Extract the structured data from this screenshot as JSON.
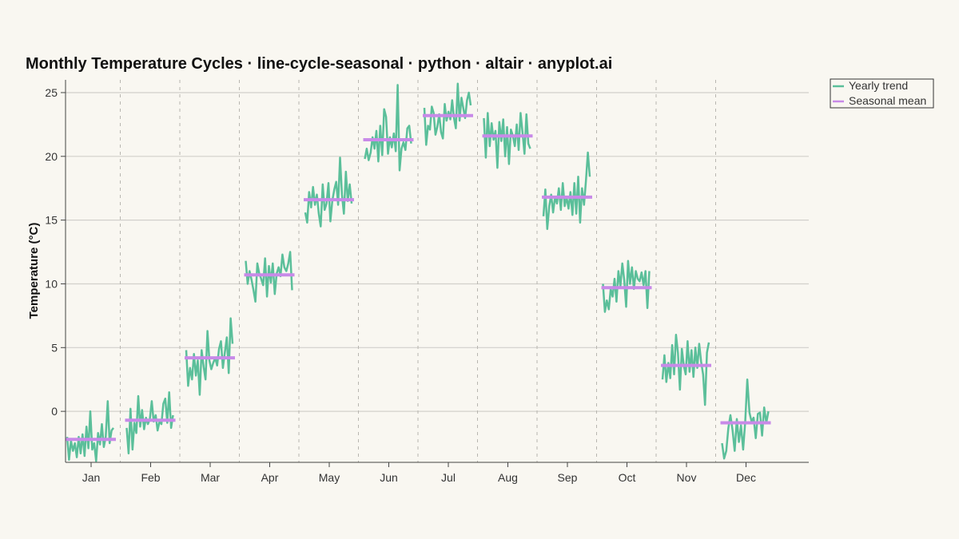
{
  "chart_data": {
    "type": "line",
    "title": "Monthly Temperature Cycles · line-cycle-seasonal · python · altair · anyplot.ai",
    "xlabel": "",
    "ylabel": "Temperature (°C)",
    "ylim": [
      -4,
      26
    ],
    "yticks": [
      0,
      5,
      10,
      15,
      20,
      25
    ],
    "grid": "horizontal",
    "legend_position": "top-right",
    "categories": [
      "Jan",
      "Feb",
      "Mar",
      "Apr",
      "May",
      "Jun",
      "Jul",
      "Aug",
      "Sep",
      "Oct",
      "Nov",
      "Dec"
    ],
    "series": [
      {
        "name": "Yearly trend",
        "color": "#5bbf9a",
        "type": "line",
        "values": [
          [
            -2.0,
            -3.8,
            -2.3,
            -3.1,
            -2.5,
            -3.6,
            -2.0,
            -3.3,
            -1.8,
            -3.5,
            -1.2,
            -2.9,
            0.0,
            -3.0,
            -2.5,
            -3.9,
            -1.7,
            -2.6,
            -1.0,
            -2.8,
            -2.0,
            0.8,
            -2.5,
            -1.5,
            -1.3
          ],
          [
            -1.3,
            -3.3,
            0.2,
            -3.0,
            -0.9,
            -1.7,
            1.2,
            -1.2,
            0.1,
            -1.4,
            -0.5,
            -1.0,
            -0.6,
            0.8,
            -0.8,
            -0.3,
            -1.5,
            -0.8,
            -1.0,
            0.6,
            1.0,
            -0.9,
            1.5,
            -1.3,
            -0.3
          ],
          [
            4.8,
            2.0,
            3.4,
            2.5,
            4.5,
            2.8,
            4.0,
            1.3,
            4.8,
            3.5,
            2.5,
            6.3,
            4.0,
            3.3,
            3.8,
            4.2,
            3.6,
            4.9,
            5.5,
            3.4,
            4.6,
            5.8,
            3.0,
            7.3,
            5.3
          ],
          [
            11.8,
            10.0,
            11.0,
            10.3,
            9.5,
            8.6,
            11.6,
            10.8,
            10.4,
            9.9,
            12.0,
            9.0,
            11.4,
            10.1,
            11.6,
            9.2,
            10.8,
            11.3,
            10.6,
            12.3,
            11.3,
            11.0,
            11.6,
            12.5,
            9.5
          ],
          [
            15.6,
            14.8,
            17.2,
            16.0,
            17.6,
            16.2,
            17.0,
            15.5,
            14.5,
            17.8,
            15.8,
            16.3,
            17.9,
            14.9,
            16.5,
            17.4,
            18.0,
            16.2,
            19.9,
            17.0,
            15.5,
            18.8,
            16.5,
            17.8,
            16.3
          ],
          [
            19.8,
            20.6,
            19.7,
            20.3,
            21.5,
            20.6,
            22.0,
            19.6,
            22.4,
            20.1,
            23.7,
            23.1,
            20.2,
            21.5,
            20.7,
            21.8,
            20.4,
            25.6,
            18.9,
            20.6,
            21.1,
            20.5,
            22.2,
            22.4,
            21.0
          ],
          [
            23.8,
            20.9,
            22.4,
            22.1,
            23.9,
            23.4,
            21.7,
            22.3,
            23.3,
            21.9,
            21.4,
            24.1,
            22.8,
            23.5,
            22.9,
            24.4,
            23.0,
            22.2,
            25.7,
            22.8,
            24.6,
            23.8,
            23.0,
            24.4,
            25.0,
            24.0
          ],
          [
            23.0,
            19.9,
            23.4,
            20.8,
            22.6,
            21.3,
            22.0,
            19.1,
            22.7,
            21.2,
            22.9,
            20.0,
            22.3,
            19.4,
            22.1,
            21.6,
            20.8,
            22.5,
            20.5,
            23.4,
            21.9,
            20.2,
            23.3,
            21.0,
            20.6
          ],
          [
            15.3,
            17.4,
            14.3,
            16.1,
            17.0,
            15.6,
            16.8,
            16.3,
            17.5,
            15.8,
            17.9,
            16.1,
            16.8,
            15.9,
            17.2,
            15.4,
            17.9,
            15.5,
            18.4,
            14.8,
            17.5,
            16.2,
            18.1,
            20.3,
            18.4
          ],
          [
            10.0,
            7.8,
            8.7,
            8.0,
            9.6,
            9.0,
            10.4,
            8.6,
            11.0,
            9.8,
            11.6,
            10.3,
            8.2,
            11.8,
            10.0,
            11.3,
            9.6,
            11.0,
            10.4,
            10.2,
            10.9,
            9.9,
            11.0,
            8.1,
            11.0
          ],
          [
            2.5,
            4.4,
            2.3,
            3.8,
            2.6,
            5.2,
            2.9,
            6.0,
            4.6,
            1.7,
            4.9,
            3.6,
            2.9,
            5.5,
            3.1,
            4.8,
            2.7,
            5.0,
            3.4,
            5.3,
            3.9,
            2.9,
            0.5,
            4.6,
            5.4
          ],
          [
            -2.5,
            -3.7,
            -3.1,
            -1.3,
            -0.3,
            -1.5,
            -3.1,
            -0.6,
            -2.4,
            -1.1,
            -3.0,
            -0.8,
            2.5,
            -0.1,
            -0.8,
            -0.5,
            -2.1,
            -0.2,
            -0.1,
            -1.9,
            0.3,
            -0.9,
            0.0
          ]
        ]
      },
      {
        "name": "Seasonal mean",
        "color": "#c88ae8",
        "type": "rule",
        "values": [
          -2.2,
          -0.7,
          4.2,
          10.7,
          16.6,
          21.3,
          23.2,
          21.6,
          16.8,
          9.7,
          3.6,
          -0.9
        ]
      }
    ]
  }
}
